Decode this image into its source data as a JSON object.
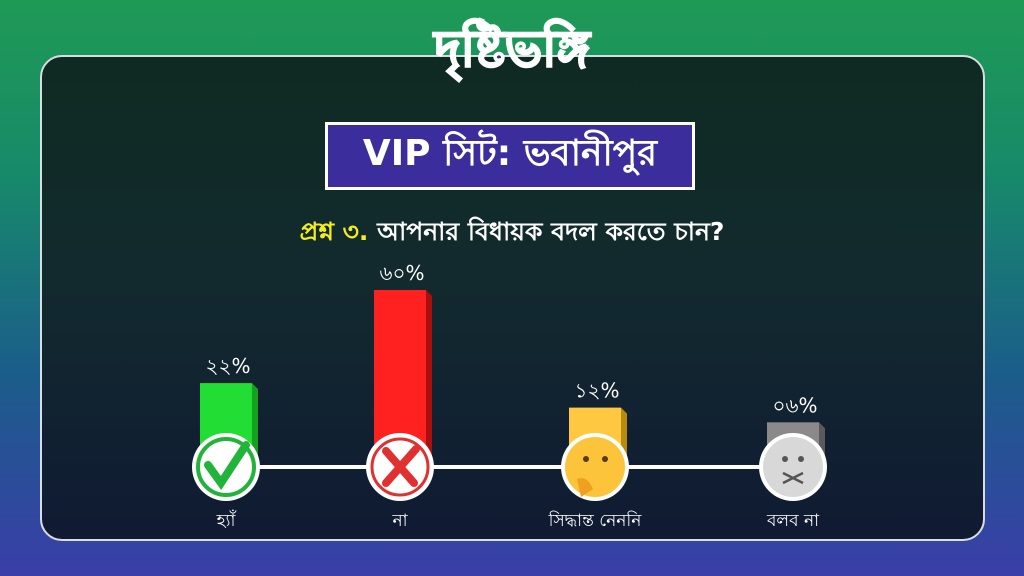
{
  "logo": {
    "part1": "দৃষ্টি",
    "part2": "ভঙ্গি"
  },
  "title": "VIP সিট: ভবানীপুর",
  "question": {
    "prefix": "প্রশ্ন ৩.",
    "text": " আপনার বিধায়ক বদল করতে চান?"
  },
  "chart_data": {
    "type": "bar",
    "categories": [
      "হ্যাঁ",
      "না",
      "সিদ্ধান্ত নেননি",
      "বলব না"
    ],
    "values": [
      22,
      60,
      12,
      6
    ],
    "value_labels": [
      "২২%",
      "৬০%",
      "১২%",
      "০৬%"
    ],
    "icons": [
      "check-icon",
      "cross-icon",
      "thinking-face-icon",
      "mouth-closed-face-icon"
    ],
    "colors": [
      "#22dd33",
      "#ff2020",
      "#ffc840",
      "#8a8a8a"
    ],
    "side_colors": [
      "#15a020",
      "#a81010",
      "#b78a10",
      "#5a5a5a"
    ],
    "ylim": [
      0,
      60
    ],
    "grid": false
  }
}
